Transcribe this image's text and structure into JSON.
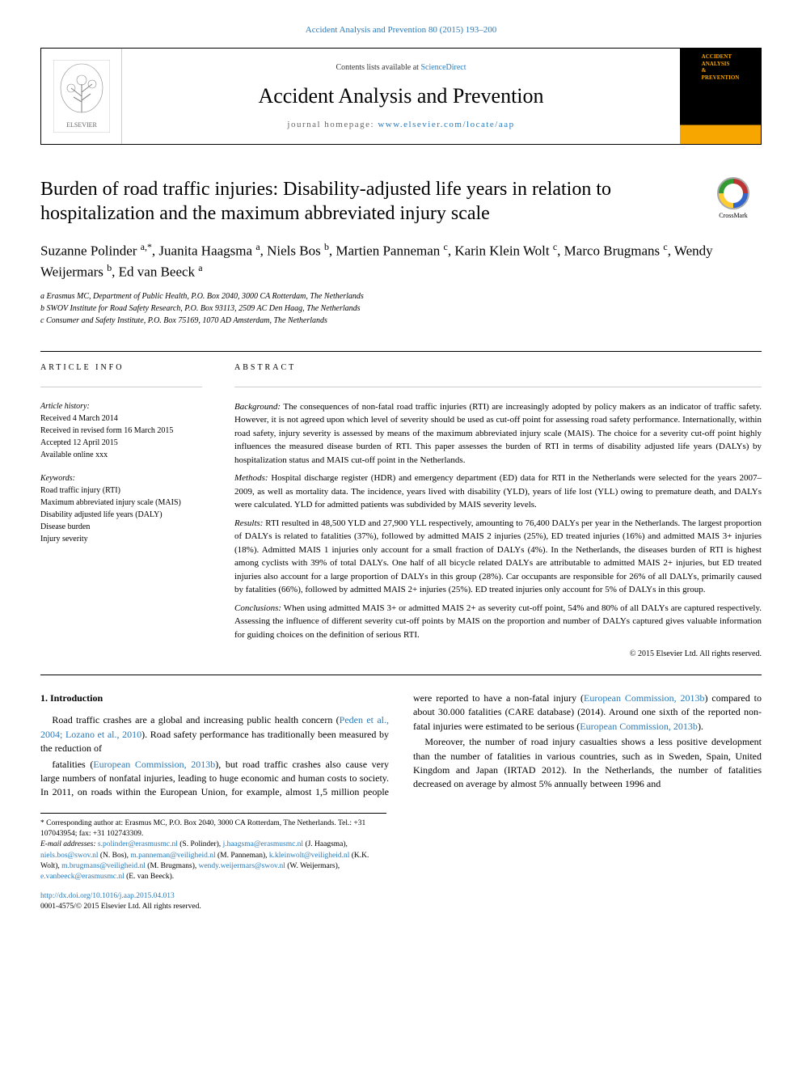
{
  "top_link": {
    "journal": "Accident Analysis and Prevention",
    "citation": "80 (2015) 193–200"
  },
  "header": {
    "contents_pre": "Contents lists available at ",
    "contents_link": "ScienceDirect",
    "journal_name": "Accident Analysis and Prevention",
    "homepage_pre": "journal homepage: ",
    "homepage_link": "www.elsevier.com/locate/aap",
    "cover_line1": "ACCIDENT",
    "cover_line2": "ANALYSIS",
    "cover_line3": "&",
    "cover_line4": "PREVENTION"
  },
  "title": "Burden of road traffic injuries: Disability-adjusted life years in relation to hospitalization and the maximum abbreviated injury scale",
  "crossmark": "CrossMark",
  "authors_html": "Suzanne Polinder <span class='sup'>a,*</span>, Juanita Haagsma <span class='sup'>a</span>, Niels Bos <span class='sup'>b</span>, Martien Panneman <span class='sup'>c</span>, Karin Klein Wolt <span class='sup'>c</span>, Marco Brugmans <span class='sup'>c</span>, Wendy Weijermars <span class='sup'>b</span>, Ed van Beeck <span class='sup'>a</span>",
  "affiliations": [
    "a Erasmus MC, Department of Public Health, P.O. Box 2040, 3000 CA Rotterdam, The Netherlands",
    "b SWOV Institute for Road Safety Research, P.O. Box 93113, 2509 AC Den Haag, The Netherlands",
    "c Consumer and Safety Institute, P.O. Box 75169, 1070 AD Amsterdam, The Netherlands"
  ],
  "info_head": "ARTICLE INFO",
  "abs_head": "ABSTRACT",
  "history_head": "Article history:",
  "history": [
    "Received 4 March 2014",
    "Received in revised form 16 March 2015",
    "Accepted 12 April 2015",
    "Available online xxx"
  ],
  "kw_head": "Keywords:",
  "keywords": [
    "Road traffic injury (RTI)",
    "Maximum abbreviated injury scale (MAIS)",
    "Disability adjusted life years (DALY)",
    "Disease burden",
    "Injury severity"
  ],
  "abstract": {
    "background_label": "Background:",
    "background": "The consequences of non-fatal road traffic injuries (RTI) are increasingly adopted by policy makers as an indicator of traffic safety. However, it is not agreed upon which level of severity should be used as cut-off point for assessing road safety performance. Internationally, within road safety, injury severity is assessed by means of the maximum abbreviated injury scale (MAIS). The choice for a severity cut-off point highly influences the measured disease burden of RTI. This paper assesses the burden of RTI in terms of disability adjusted life years (DALYs) by hospitalization status and MAIS cut-off point in the Netherlands.",
    "methods_label": "Methods:",
    "methods": "Hospital discharge register (HDR) and emergency department (ED) data for RTI in the Netherlands were selected for the years 2007–2009, as well as mortality data. The incidence, years lived with disability (YLD), years of life lost (YLL) owing to premature death, and DALYs were calculated. YLD for admitted patients was subdivided by MAIS severity levels.",
    "results_label": "Results:",
    "results": "RTI resulted in 48,500 YLD and 27,900 YLL respectively, amounting to 76,400 DALYs per year in the Netherlands. The largest proportion of DALYs is related to fatalities (37%), followed by admitted MAIS 2 injuries (25%), ED treated injuries (16%) and admitted MAIS 3+ injuries (18%). Admitted MAIS 1 injuries only account for a small fraction of DALYs (4%). In the Netherlands, the diseases burden of RTI is highest among cyclists with 39% of total DALYs. One half of all bicycle related DALYs are attributable to admitted MAIS 2+ injuries, but ED treated injuries also account for a large proportion of DALYs in this group (28%). Car occupants are responsible for 26% of all DALYs, primarily caused by fatalities (66%), followed by admitted MAIS 2+ injuries (25%). ED treated injuries only account for 5% of DALYs in this group.",
    "conclusions_label": "Conclusions:",
    "conclusions": "When using admitted MAIS 3+ or admitted MAIS 2+ as severity cut-off point, 54% and 80% of all DALYs are captured respectively. Assessing the influence of different severity cut-off points by MAIS on the proportion and number of DALYs captured gives valuable information for guiding choices on the definition of serious RTI."
  },
  "copyright": "© 2015 Elsevier Ltd. All rights reserved.",
  "section1_head": "1. Introduction",
  "p1_pre": "Road traffic crashes are a global and increasing public health concern (",
  "p1_link": "Peden et al., 2004; Lozano et al., 2010",
  "p1_post": "). Road safety performance has traditionally been measured by the reduction of",
  "p2_pre": "fatalities (",
  "p2_link1": "European Commission, 2013b",
  "p2_mid1": "), but road traffic crashes also cause very large numbers of nonfatal injuries, leading to huge economic and human costs to society. In 2011, on roads within the European Union, for example, almost 1,5 million people were reported to have a non-fatal injury (",
  "p2_link2": "European Commission, 2013b",
  "p2_mid2": ") compared to about 30.000 fatalities (CARE database) (2014). Around one sixth of the reported non-fatal injuries were estimated to be serious (",
  "p2_link3": "European Commission, 2013b",
  "p2_post": ").",
  "p3": "Moreover, the number of road injury casualties shows a less positive development than the number of fatalities in various countries, such as in Sweden, Spain, United Kingdom and Japan (IRTAD 2012). In the Netherlands, the number of fatalities decreased on average by almost 5% annually between 1996 and",
  "footnote": {
    "corr": "* Corresponding author at: Erasmus MC, P.O. Box 2040, 3000 CA Rotterdam, The Netherlands. Tel.: +31 107043954; fax: +31 102743309.",
    "emails_label": "E-mail addresses:",
    "emails": [
      {
        "addr": "s.polinder@erasmusmc.nl",
        "name": "(S. Polinder),"
      },
      {
        "addr": "j.haagsma@erasmusmc.nl",
        "name": "(J. Haagsma),"
      },
      {
        "addr": "niels.bos@swov.nl",
        "name": "(N. Bos),"
      },
      {
        "addr": "m.panneman@veiligheid.nl",
        "name": "(M. Panneman),"
      },
      {
        "addr": "k.kleinwolt@veiligheid.nl",
        "name": "(K.K. Wolt),"
      },
      {
        "addr": "m.brugmans@veiligheid.nl",
        "name": "(M. Brugmans),"
      },
      {
        "addr": "wendy.weijermars@swov.nl",
        "name": "(W. Weijermars),"
      },
      {
        "addr": "e.vanbeeck@erasmusmc.nl",
        "name": "(E. van Beeck)."
      }
    ]
  },
  "doi": "http://dx.doi.org/10.1016/j.aap.2015.04.013",
  "issn_line": "0001-4575/© 2015 Elsevier Ltd. All rights reserved.",
  "colors": {
    "link": "#2b7ab8",
    "accent": "#f7a600"
  }
}
